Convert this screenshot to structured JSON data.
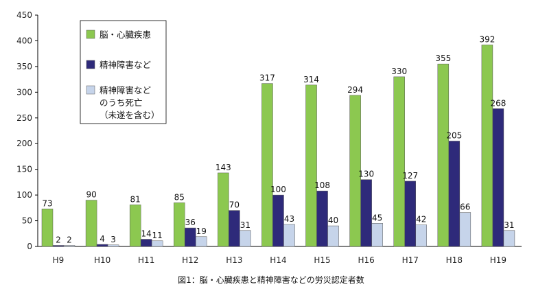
{
  "chart_data": {
    "type": "bar",
    "categories": [
      "H9",
      "H10",
      "H11",
      "H12",
      "H13",
      "H14",
      "H15",
      "H16",
      "H17",
      "H18",
      "H19"
    ],
    "series": [
      {
        "name": "脳・心臓疾患",
        "color": "#8cc850",
        "values": [
          73,
          90,
          81,
          85,
          143,
          317,
          314,
          294,
          330,
          355,
          392
        ]
      },
      {
        "name": "精神障害など",
        "color": "#2e2a7a",
        "values": [
          2,
          4,
          14,
          36,
          70,
          100,
          108,
          130,
          127,
          205,
          268
        ]
      },
      {
        "name": "精神障害などのうち死亡（未遂を含む）",
        "color": "#c6d4ea",
        "values": [
          2,
          3,
          11,
          19,
          31,
          43,
          40,
          45,
          42,
          66,
          31
        ]
      }
    ],
    "legend_lines": [
      [
        "脳・心臓疾患"
      ],
      [
        "精神障害など"
      ],
      [
        "精神障害など",
        "のうち死亡",
        "（未遂を含む）"
      ]
    ],
    "ylim": [
      0,
      450
    ],
    "yticks": [
      0,
      50,
      100,
      150,
      200,
      250,
      300,
      350,
      400,
      450
    ],
    "grid": false,
    "legend_position": "top-left",
    "caption": "図1：脳・心臓疾患と精神障害などの労災認定者数"
  }
}
